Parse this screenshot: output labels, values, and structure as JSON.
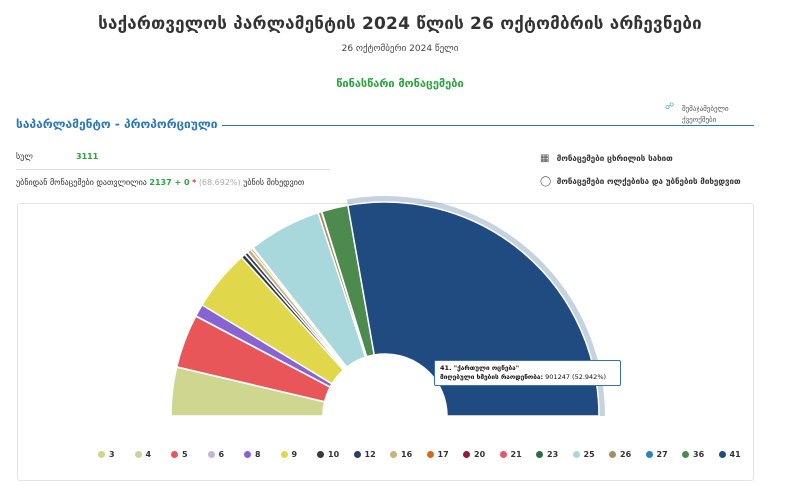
{
  "header": {
    "title": "საქართველოს პარლამენტის 2024 წლის 26 ოქტომბრის არჩევნები",
    "date": "26 ოქტომბერი 2024 წელი",
    "preliminary": "წინასწარი მონაცემები"
  },
  "links": {
    "label": "შემაჯამებელი ქვეოქმები"
  },
  "section": {
    "title": "საპარლამენტო - პროპორციული"
  },
  "stats": {
    "precincts_label": "სულ",
    "precincts_value": "3111",
    "counted_label": "უბნიდან მონაცემები დათვლილია",
    "counted_value": "2137 + 0",
    "star": "*",
    "counted_pct": "(68.692%)",
    "counted_suffix": "უბნის მიხედვით"
  },
  "options": {
    "table_view": "მონაცემები ცხრილის სახით",
    "by_district": "მონაცემები ოლქებისა და უბნების მიხედვით",
    "table_icon": "table-icon",
    "pin_icon": "map-pin-icon"
  },
  "tooltip": {
    "title": "41. \"ქართული ოცნება\"",
    "label": "მიღებული ხმების რაოდენობა:",
    "value": "901247 (52.942%)"
  },
  "chart_data": {
    "type": "pie",
    "style": "semi-donut",
    "legend_position": "bottom",
    "series": [
      {
        "name": "3",
        "value": 7.0,
        "color": "#cfd68f"
      },
      {
        "name": "4",
        "value": 0.03,
        "color": "#cbd59a"
      },
      {
        "name": "5",
        "value": 7.7,
        "color": "#e9565a"
      },
      {
        "name": "6",
        "value": 0.03,
        "color": "#c7b5d9"
      },
      {
        "name": "8",
        "value": 1.8,
        "color": "#8a63d2"
      },
      {
        "name": "9",
        "value": 8.8,
        "color": "#e0d84a"
      },
      {
        "name": "10",
        "value": 0.6,
        "color": "#3a3a3a"
      },
      {
        "name": "12",
        "value": 0.5,
        "color": "#2c3e66"
      },
      {
        "name": "16",
        "value": 0.6,
        "color": "#c9b27a"
      },
      {
        "name": "17",
        "value": 0.3,
        "color": "#d2691e"
      },
      {
        "name": "20",
        "value": 0.05,
        "color": "#8b1e3f"
      },
      {
        "name": "21",
        "value": 0.05,
        "color": "#e9566a"
      },
      {
        "name": "23",
        "value": 0.05,
        "color": "#2e6b45"
      },
      {
        "name": "25",
        "value": 10.5,
        "color": "#a8d8dc"
      },
      {
        "name": "26",
        "value": 0.5,
        "color": "#a58f5e"
      },
      {
        "name": "27",
        "value": 0.05,
        "color": "#2c7fc2"
      },
      {
        "name": "36",
        "value": 3.8,
        "color": "#4c8a4d"
      },
      {
        "name": "41",
        "value": 52.942,
        "color": "#1f4b81"
      }
    ]
  }
}
